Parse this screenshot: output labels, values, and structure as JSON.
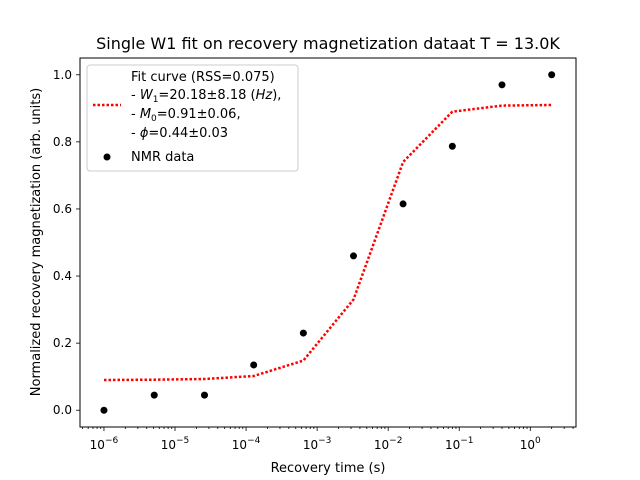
{
  "chart_data": {
    "type": "scatter",
    "title": "Single W1 fit on recovery magnetization dataat T = 13.0K",
    "xlabel": "Recovery time (s)",
    "ylabel": "Normalized recovery magnetization (arb. units)",
    "xscale": "log",
    "xlim": [
      4.6e-07,
      4.4
    ],
    "ylim": [
      -0.05,
      1.05
    ],
    "grid": false,
    "legend_position": "upper-left",
    "x_ticks": [
      {
        "value": 1e-06,
        "base": "10",
        "exp": "−6"
      },
      {
        "value": 1e-05,
        "base": "10",
        "exp": "−5"
      },
      {
        "value": 0.0001,
        "base": "10",
        "exp": "−4"
      },
      {
        "value": 0.001,
        "base": "10",
        "exp": "−3"
      },
      {
        "value": 0.01,
        "base": "10",
        "exp": "−2"
      },
      {
        "value": 0.1,
        "base": "10",
        "exp": "−1"
      },
      {
        "value": 1,
        "base": "10",
        "exp": "0"
      }
    ],
    "y_ticks": [
      {
        "value": 0.0,
        "label": "0.0"
      },
      {
        "value": 0.2,
        "label": "0.2"
      },
      {
        "value": 0.4,
        "label": "0.4"
      },
      {
        "value": 0.6,
        "label": "0.6"
      },
      {
        "value": 0.8,
        "label": "0.8"
      },
      {
        "value": 1.0,
        "label": "1.0"
      }
    ],
    "series": [
      {
        "name": "NMR data",
        "kind": "scatter",
        "color": "#000000",
        "x": [
          1e-06,
          5.1e-06,
          2.6e-05,
          0.000128,
          0.00064,
          0.00325,
          0.0162,
          0.08,
          0.4,
          2.0
        ],
        "y": [
          0.0,
          0.045,
          0.045,
          0.135,
          0.23,
          0.46,
          0.615,
          0.787,
          0.97,
          1.0
        ]
      },
      {
        "name": "Fit curve (RSS=0.075)",
        "kind": "line",
        "style": "dotted",
        "color": "#ff0000",
        "x": [
          1e-06,
          5.1e-06,
          2.6e-05,
          0.000128,
          0.00064,
          0.00325,
          0.0162,
          0.08,
          0.4,
          2.0
        ],
        "y": [
          0.09,
          0.091,
          0.093,
          0.102,
          0.148,
          0.33,
          0.74,
          0.89,
          0.908,
          0.91
        ]
      }
    ],
    "legend": {
      "fit_lines": [
        {
          "pre": "- ",
          "sym": "W",
          "sub": "1",
          "post": "=20.18±8.18 (",
          "unit": "Hz",
          "close": "),"
        },
        {
          "pre": "- ",
          "sym": "M",
          "sub": "0",
          "post": "=0.91±0.06,",
          "unit": "",
          "close": ""
        },
        {
          "pre": "- ",
          "sym": "ϕ",
          "sub": "",
          "post": "=0.44±0.03",
          "unit": "",
          "close": ""
        }
      ]
    }
  }
}
